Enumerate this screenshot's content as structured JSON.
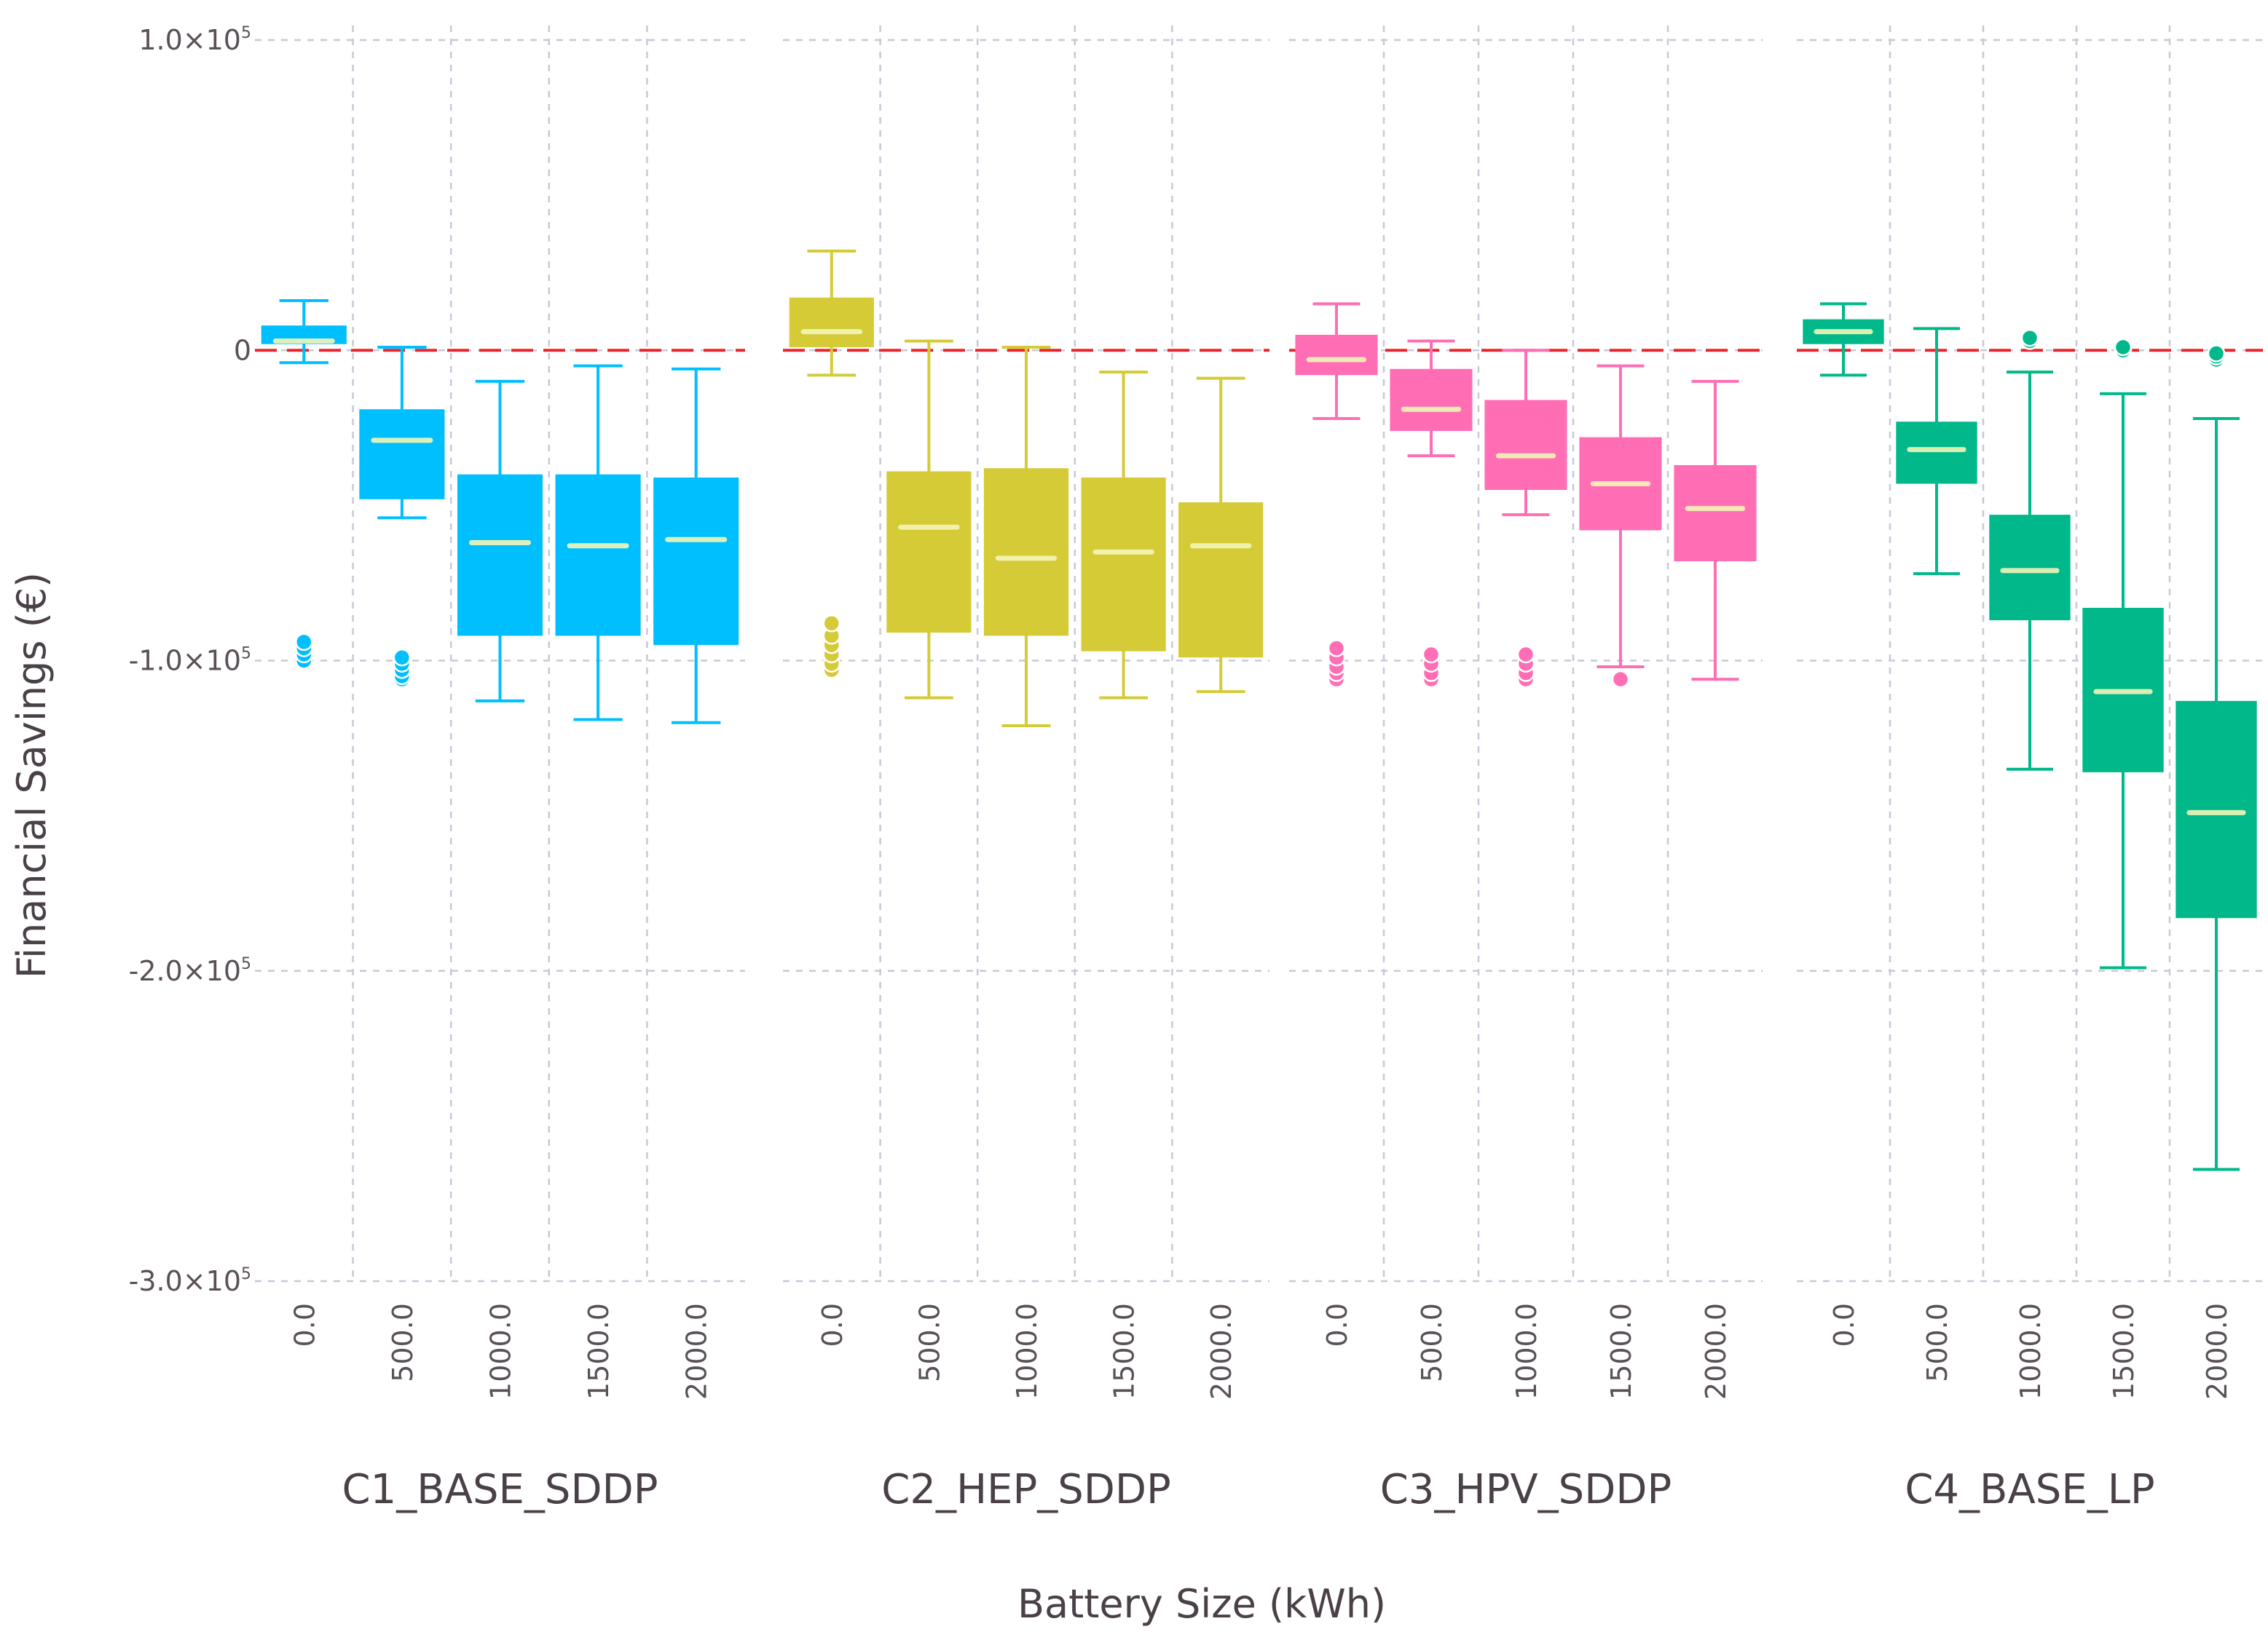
{
  "chart_data": {
    "type": "box",
    "title": "",
    "ylabel": "Financial Savings (€)",
    "xlabel": "Battery Size (kWh)",
    "ylim": [
      -300000,
      100000
    ],
    "yticks": [
      {
        "value": 100000,
        "mantissa": "1.0",
        "exp": "5"
      },
      {
        "value": 0,
        "label": "0"
      },
      {
        "value": -100000,
        "mantissa": "-1.0",
        "exp": "5"
      },
      {
        "value": -200000,
        "mantissa": "-2.0",
        "exp": "5"
      },
      {
        "value": -300000,
        "mantissa": "-3.0",
        "exp": "5"
      }
    ],
    "times_sign": "×10",
    "reference_line": {
      "value": 0,
      "color": "#e8262b"
    },
    "categories": [
      "0.0",
      "500.0",
      "1000.0",
      "1500.0",
      "2000.0"
    ],
    "panels": [
      {
        "name": "C1_BASE_SDDP",
        "color": "#00bfff",
        "boxes": [
          {
            "whisker_low": -4000,
            "q1": 2000,
            "median": 3000,
            "q3": 8000,
            "whisker_high": 16000,
            "outliers": [
              -94000,
              -96000,
              -98000,
              -100000
            ]
          },
          {
            "whisker_low": -54000,
            "q1": -48000,
            "median": -29000,
            "q3": -19000,
            "whisker_high": 1000,
            "outliers": [
              -99000,
              -101000,
              -103000,
              -105000,
              -106000
            ]
          },
          {
            "whisker_low": -113000,
            "q1": -92000,
            "median": -62000,
            "q3": -40000,
            "whisker_high": -10000,
            "outliers": []
          },
          {
            "whisker_low": -119000,
            "q1": -92000,
            "median": -63000,
            "q3": -40000,
            "whisker_high": -5000,
            "outliers": []
          },
          {
            "whisker_low": -120000,
            "q1": -95000,
            "median": -61000,
            "q3": -41000,
            "whisker_high": -6000,
            "outliers": []
          }
        ]
      },
      {
        "name": "C2_HEP_SDDP",
        "color": "#d4cb37",
        "boxes": [
          {
            "whisker_low": -8000,
            "q1": 1000,
            "median": 6000,
            "q3": 17000,
            "whisker_high": 32000,
            "outliers": [
              -88000,
              -92000,
              -95000,
              -98000,
              -101000,
              -103000
            ]
          },
          {
            "whisker_low": -112000,
            "q1": -91000,
            "median": -57000,
            "q3": -39000,
            "whisker_high": 3000,
            "outliers": []
          },
          {
            "whisker_low": -121000,
            "q1": -92000,
            "median": -67000,
            "q3": -38000,
            "whisker_high": 1000,
            "outliers": []
          },
          {
            "whisker_low": -112000,
            "q1": -97000,
            "median": -65000,
            "q3": -41000,
            "whisker_high": -7000,
            "outliers": []
          },
          {
            "whisker_low": -110000,
            "q1": -99000,
            "median": -63000,
            "q3": -49000,
            "whisker_high": -9000,
            "outliers": []
          }
        ]
      },
      {
        "name": "C3_HPV_SDDP",
        "color": "#ff6eb4",
        "boxes": [
          {
            "whisker_low": -22000,
            "q1": -8000,
            "median": -3000,
            "q3": 5000,
            "whisker_high": 15000,
            "outliers": [
              -96000,
              -99000,
              -102000,
              -104000,
              -106000
            ]
          },
          {
            "whisker_low": -34000,
            "q1": -26000,
            "median": -19000,
            "q3": -6000,
            "whisker_high": 3000,
            "outliers": [
              -98000,
              -101000,
              -104000,
              -106000
            ]
          },
          {
            "whisker_low": -53000,
            "q1": -45000,
            "median": -34000,
            "q3": -16000,
            "whisker_high": 0,
            "outliers": [
              -98000,
              -101000,
              -104000,
              -106000
            ]
          },
          {
            "whisker_low": -102000,
            "q1": -58000,
            "median": -43000,
            "q3": -28000,
            "whisker_high": -5000,
            "outliers": [
              -106000
            ]
          },
          {
            "whisker_low": -106000,
            "q1": -68000,
            "median": -51000,
            "q3": -37000,
            "whisker_high": -10000,
            "outliers": []
          }
        ]
      },
      {
        "name": "C4_BASE_LP",
        "color": "#00b889",
        "boxes": [
          {
            "whisker_low": -8000,
            "q1": 2000,
            "median": 6000,
            "q3": 10000,
            "whisker_high": 15000,
            "outliers": []
          },
          {
            "whisker_low": -72000,
            "q1": -43000,
            "median": -32000,
            "q3": -23000,
            "whisker_high": 7000,
            "outliers": []
          },
          {
            "whisker_low": -135000,
            "q1": -87000,
            "median": -71000,
            "q3": -53000,
            "whisker_high": -7000,
            "outliers": [
              4000,
              3000
            ]
          },
          {
            "whisker_low": -199000,
            "q1": -136000,
            "median": -110000,
            "q3": -83000,
            "whisker_high": -14000,
            "outliers": [
              1000,
              0
            ]
          },
          {
            "whisker_low": -264000,
            "q1": -183000,
            "median": -149000,
            "q3": -113000,
            "whisker_high": -22000,
            "outliers": [
              -1000,
              -2000,
              -3000
            ]
          }
        ]
      }
    ]
  }
}
